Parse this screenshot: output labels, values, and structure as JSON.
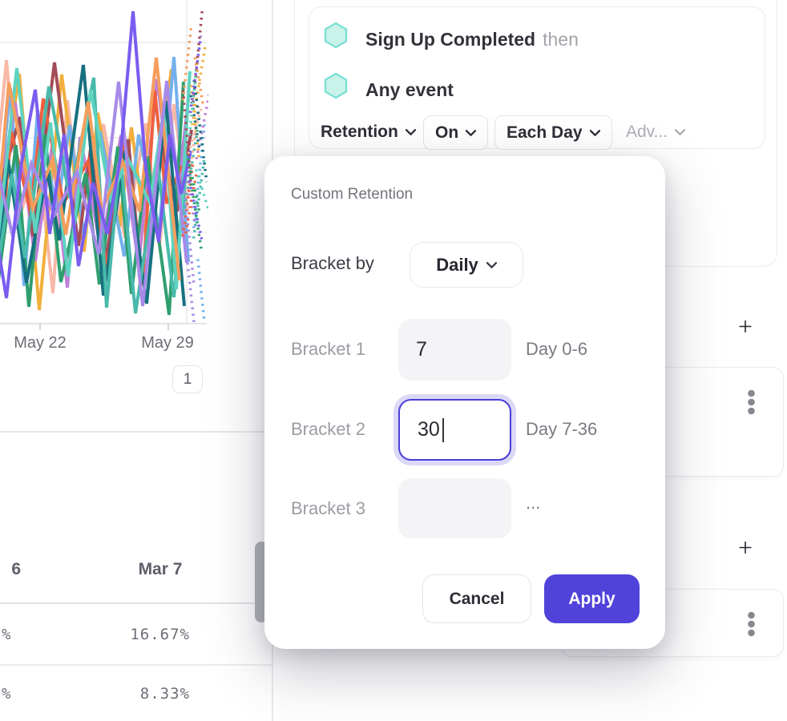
{
  "chart": {
    "x_tick_labels": [
      "May 22",
      "May 29"
    ],
    "pagination_label": "1",
    "grid_color": "#e9e9ed",
    "axis_color": "#dcdce0",
    "tick_color": "#c9c9cf",
    "series_colors": [
      "#f8b8a8",
      "#f2af3c",
      "#74b1ec",
      "#c07fd8",
      "#a34d58",
      "#ef5f3e",
      "#2f9e6e",
      "#16707f",
      "#49b9ab",
      "#5ed3c0",
      "#f59d5c",
      "#a78ae8",
      "#7a5cf0"
    ]
  },
  "query_panel": {
    "step_1": {
      "event": "Sign Up Completed",
      "connector": "then"
    },
    "step_2": {
      "event": "Any event"
    },
    "measure_dropdown": "Retention",
    "on_dropdown": "On",
    "granularity_dropdown": "Each Day",
    "advanced_dropdown": "Adv..."
  },
  "results_table": {
    "left_column_partial": {
      "header": "6",
      "row_1": "%",
      "row_2": "%"
    },
    "column_header": "Mar 7",
    "row_1_value": "16.67%",
    "row_2_value": "8.33%"
  },
  "modal": {
    "title": "Custom Retention",
    "bracket_by_label": "Bracket by",
    "bracket_by_value": "Daily",
    "brackets": [
      {
        "label": "Bracket 1",
        "value": "7",
        "range": "Day 0-6"
      },
      {
        "label": "Bracket 2",
        "value": "30",
        "range": "Day 7-36"
      },
      {
        "label": "Bracket 3",
        "value": "",
        "range": "..."
      }
    ],
    "cancel_label": "Cancel",
    "apply_label": "Apply",
    "accent_color": "#5143d9",
    "focus_border_color": "#4a3ed8",
    "focus_ring_color": "#dcd8f7"
  }
}
